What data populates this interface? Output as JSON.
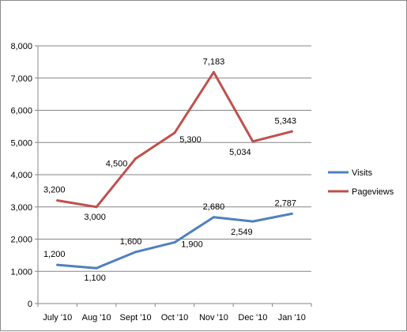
{
  "chart_data": {
    "type": "line",
    "categories": [
      "July '10",
      "Aug '10",
      "Sept '10",
      "Oct '10",
      "Nov '10",
      "Dec '10",
      "Jan '10"
    ],
    "series": [
      {
        "name": "Visits",
        "color": "#4f81bd",
        "values": [
          1200,
          1100,
          1600,
          1900,
          2680,
          2549,
          2787
        ],
        "labels": [
          "1,200",
          "1,100",
          "1,600",
          "1,900",
          "2,680",
          "2,549",
          "2,787"
        ]
      },
      {
        "name": "Pageviews",
        "color": "#c0504d",
        "values": [
          3200,
          3000,
          4500,
          5300,
          7183,
          5034,
          5343
        ],
        "labels": [
          "3,200",
          "3,000",
          "4,500",
          "5,300",
          "7,183",
          "5,034",
          "5,343"
        ]
      }
    ],
    "y_ticks": [
      0,
      1000,
      2000,
      3000,
      4000,
      5000,
      6000,
      7000,
      8000
    ],
    "y_tick_labels": [
      "0",
      "1,000",
      "2,000",
      "3,000",
      "4,000",
      "5,000",
      "6,000",
      "7,000",
      "8,000"
    ],
    "ylim": [
      0,
      8000
    ],
    "grid": true,
    "legend_position": "right"
  }
}
